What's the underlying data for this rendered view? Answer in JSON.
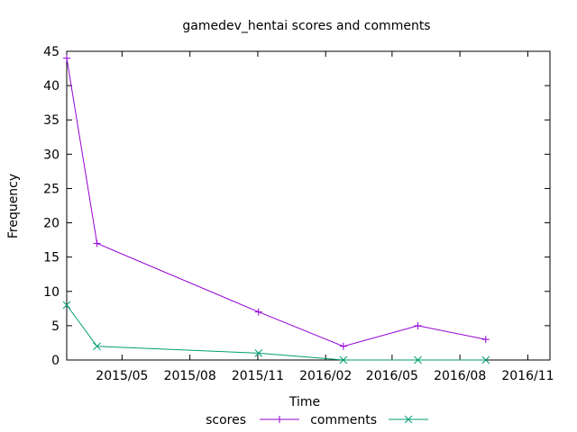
{
  "chart_data": {
    "type": "line",
    "title": "gamedev_hentai scores and comments",
    "xlabel": "Time",
    "ylabel": "Frequency",
    "x_axis_type": "date",
    "xlim": [
      "2015-02-15",
      "2016-12-01"
    ],
    "ylim": [
      0,
      45
    ],
    "y_ticks": [
      0,
      5,
      10,
      15,
      20,
      25,
      30,
      35,
      40,
      45
    ],
    "x_ticks": [
      {
        "date": "2015-05-01",
        "label": "2015/05"
      },
      {
        "date": "2015-08-01",
        "label": "2015/08"
      },
      {
        "date": "2015-11-01",
        "label": "2015/11"
      },
      {
        "date": "2016-02-01",
        "label": "2016/02"
      },
      {
        "date": "2016-05-01",
        "label": "2016/05"
      },
      {
        "date": "2016-08-01",
        "label": "2016/08"
      },
      {
        "date": "2016-11-01",
        "label": "2016/11"
      }
    ],
    "grid": false,
    "legend_position": "bottom-center",
    "series": [
      {
        "name": "scores",
        "color": "#9400d3",
        "marker": "plus",
        "points": [
          {
            "x": "2015-02-15",
            "y": 44
          },
          {
            "x": "2015-03-28",
            "y": 17
          },
          {
            "x": "2015-11-02",
            "y": 7
          },
          {
            "x": "2016-02-25",
            "y": 2
          },
          {
            "x": "2016-06-05",
            "y": 5
          },
          {
            "x": "2016-09-05",
            "y": 3
          }
        ]
      },
      {
        "name": "comments",
        "color": "#009e73",
        "marker": "cross",
        "points": [
          {
            "x": "2015-02-15",
            "y": 8
          },
          {
            "x": "2015-03-28",
            "y": 2
          },
          {
            "x": "2015-11-02",
            "y": 1
          },
          {
            "x": "2016-02-25",
            "y": 0
          },
          {
            "x": "2016-06-05",
            "y": 0
          },
          {
            "x": "2016-09-05",
            "y": 0
          }
        ]
      }
    ]
  }
}
